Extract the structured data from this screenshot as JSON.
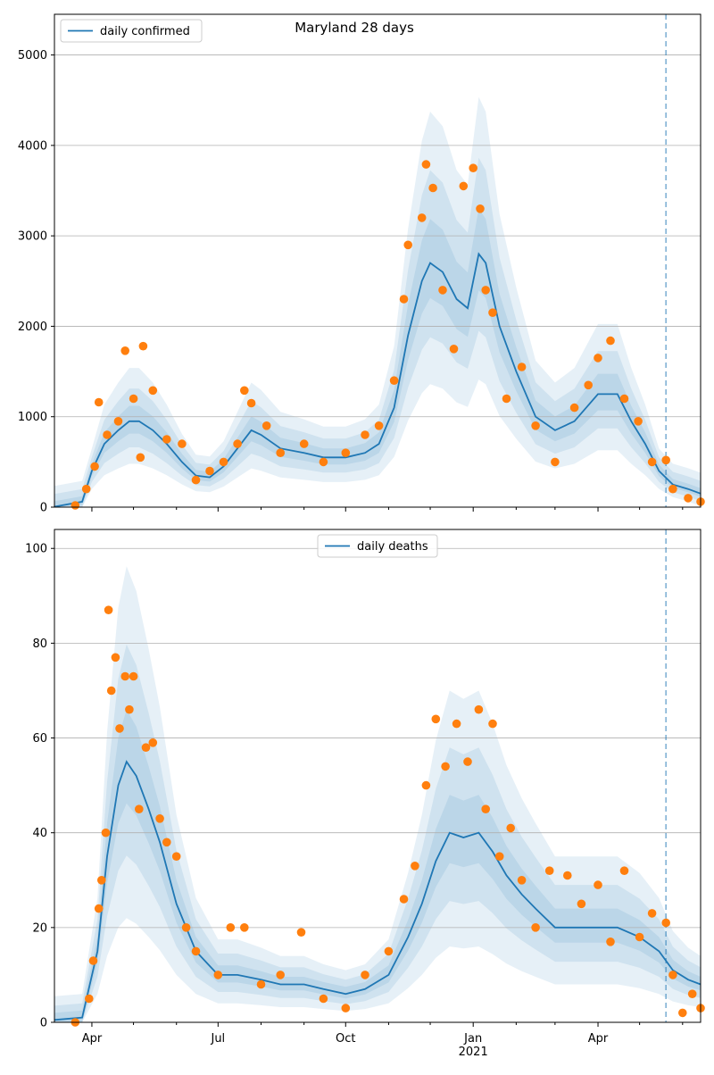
{
  "chart_data": [
    {
      "type": "line",
      "title": "Maryland 28 days",
      "legend": {
        "label": "daily confirmed",
        "placement": "top-left"
      },
      "y_ticks": [
        0,
        1000,
        2000,
        3000,
        4000,
        5000
      ],
      "ylim": [
        0,
        5450
      ],
      "grid": "y",
      "forecast_start": "2021-05-20",
      "colors": {
        "line": "#1f77b4",
        "points": "#ff7f0e",
        "band": "#1f77b4",
        "cutoff": "#1f77b4"
      },
      "series": [
        {
          "x": "2020-03-05",
          "y": 5
        },
        {
          "x": "2020-03-25",
          "y": 60
        },
        {
          "x": "2020-04-01",
          "y": 400
        },
        {
          "x": "2020-04-10",
          "y": 700
        },
        {
          "x": "2020-04-20",
          "y": 850
        },
        {
          "x": "2020-04-28",
          "y": 950
        },
        {
          "x": "2020-05-05",
          "y": 950
        },
        {
          "x": "2020-05-15",
          "y": 850
        },
        {
          "x": "2020-05-25",
          "y": 700
        },
        {
          "x": "2020-06-05",
          "y": 500
        },
        {
          "x": "2020-06-15",
          "y": 350
        },
        {
          "x": "2020-06-25",
          "y": 330
        },
        {
          "x": "2020-07-05",
          "y": 450
        },
        {
          "x": "2020-07-15",
          "y": 650
        },
        {
          "x": "2020-07-25",
          "y": 850
        },
        {
          "x": "2020-08-01",
          "y": 800
        },
        {
          "x": "2020-08-15",
          "y": 650
        },
        {
          "x": "2020-09-01",
          "y": 600
        },
        {
          "x": "2020-09-15",
          "y": 550
        },
        {
          "x": "2020-10-01",
          "y": 550
        },
        {
          "x": "2020-10-15",
          "y": 600
        },
        {
          "x": "2020-10-25",
          "y": 700
        },
        {
          "x": "2020-11-05",
          "y": 1100
        },
        {
          "x": "2020-11-15",
          "y": 1900
        },
        {
          "x": "2020-11-25",
          "y": 2500
        },
        {
          "x": "2020-12-01",
          "y": 2700
        },
        {
          "x": "2020-12-10",
          "y": 2600
        },
        {
          "x": "2020-12-20",
          "y": 2300
        },
        {
          "x": "2020-12-28",
          "y": 2200
        },
        {
          "x": "2021-01-05",
          "y": 2800
        },
        {
          "x": "2021-01-10",
          "y": 2700
        },
        {
          "x": "2021-01-20",
          "y": 2000
        },
        {
          "x": "2021-02-01",
          "y": 1500
        },
        {
          "x": "2021-02-15",
          "y": 1000
        },
        {
          "x": "2021-03-01",
          "y": 850
        },
        {
          "x": "2021-03-15",
          "y": 950
        },
        {
          "x": "2021-04-01",
          "y": 1250
        },
        {
          "x": "2021-04-15",
          "y": 1250
        },
        {
          "x": "2021-04-25",
          "y": 950
        },
        {
          "x": "2021-05-05",
          "y": 700
        },
        {
          "x": "2021-05-15",
          "y": 400
        },
        {
          "x": "2021-05-25",
          "y": 250
        },
        {
          "x": "2021-06-05",
          "y": 200
        },
        {
          "x": "2021-06-14",
          "y": 150
        }
      ],
      "points": [
        {
          "x": "2020-03-20",
          "y": 20
        },
        {
          "x": "2020-03-28",
          "y": 200
        },
        {
          "x": "2020-04-03",
          "y": 450
        },
        {
          "x": "2020-04-06",
          "y": 1160
        },
        {
          "x": "2020-04-12",
          "y": 800
        },
        {
          "x": "2020-04-20",
          "y": 950
        },
        {
          "x": "2020-04-25",
          "y": 1730
        },
        {
          "x": "2020-05-01",
          "y": 1200
        },
        {
          "x": "2020-05-06",
          "y": 550
        },
        {
          "x": "2020-05-08",
          "y": 1780
        },
        {
          "x": "2020-05-15",
          "y": 1290
        },
        {
          "x": "2020-05-25",
          "y": 750
        },
        {
          "x": "2020-06-05",
          "y": 700
        },
        {
          "x": "2020-06-15",
          "y": 300
        },
        {
          "x": "2020-06-25",
          "y": 400
        },
        {
          "x": "2020-07-05",
          "y": 500
        },
        {
          "x": "2020-07-15",
          "y": 700
        },
        {
          "x": "2020-07-20",
          "y": 1290
        },
        {
          "x": "2020-07-25",
          "y": 1150
        },
        {
          "x": "2020-08-05",
          "y": 900
        },
        {
          "x": "2020-08-15",
          "y": 600
        },
        {
          "x": "2020-09-01",
          "y": 700
        },
        {
          "x": "2020-09-15",
          "y": 500
        },
        {
          "x": "2020-10-01",
          "y": 600
        },
        {
          "x": "2020-10-15",
          "y": 800
        },
        {
          "x": "2020-10-25",
          "y": 900
        },
        {
          "x": "2020-11-05",
          "y": 1400
        },
        {
          "x": "2020-11-12",
          "y": 2300
        },
        {
          "x": "2020-11-15",
          "y": 2900
        },
        {
          "x": "2020-11-25",
          "y": 3200
        },
        {
          "x": "2020-11-28",
          "y": 3790
        },
        {
          "x": "2020-12-03",
          "y": 3530
        },
        {
          "x": "2020-12-10",
          "y": 2400
        },
        {
          "x": "2020-12-18",
          "y": 1750
        },
        {
          "x": "2020-12-25",
          "y": 3550
        },
        {
          "x": "2021-01-01",
          "y": 3750
        },
        {
          "x": "2021-01-06",
          "y": 3300
        },
        {
          "x": "2021-01-10",
          "y": 2400
        },
        {
          "x": "2021-01-15",
          "y": 2150
        },
        {
          "x": "2021-01-25",
          "y": 1200
        },
        {
          "x": "2021-02-05",
          "y": 1550
        },
        {
          "x": "2021-02-15",
          "y": 900
        },
        {
          "x": "2021-03-01",
          "y": 500
        },
        {
          "x": "2021-03-15",
          "y": 1100
        },
        {
          "x": "2021-03-25",
          "y": 1350
        },
        {
          "x": "2021-04-01",
          "y": 1650
        },
        {
          "x": "2021-04-10",
          "y": 1840
        },
        {
          "x": "2021-04-20",
          "y": 1200
        },
        {
          "x": "2021-04-30",
          "y": 950
        },
        {
          "x": "2021-05-10",
          "y": 500
        },
        {
          "x": "2021-05-20",
          "y": 520
        },
        {
          "x": "2021-05-25",
          "y": 200
        },
        {
          "x": "2021-06-05",
          "y": 100
        },
        {
          "x": "2021-06-14",
          "y": 60
        }
      ]
    },
    {
      "type": "line",
      "title": "",
      "legend": {
        "label": "daily deaths",
        "placement": "top-center"
      },
      "y_ticks": [
        0,
        20,
        40,
        60,
        80,
        100
      ],
      "ylim": [
        0,
        104
      ],
      "grid": "y",
      "forecast_start": "2021-05-20",
      "x_ticks": [
        {
          "x": "2020-04-01",
          "label": "Apr"
        },
        {
          "x": "2020-07-01",
          "label": "Jul"
        },
        {
          "x": "2020-10-01",
          "label": "Oct"
        },
        {
          "x": "2021-01-01",
          "label": "Jan",
          "sub": "2021"
        },
        {
          "x": "2021-04-01",
          "label": "Apr"
        }
      ],
      "colors": {
        "line": "#1f77b4",
        "points": "#ff7f0e",
        "band": "#1f77b4",
        "cutoff": "#1f77b4"
      },
      "series": [
        {
          "x": "2020-03-05",
          "y": 0.5
        },
        {
          "x": "2020-03-25",
          "y": 1
        },
        {
          "x": "2020-04-05",
          "y": 15
        },
        {
          "x": "2020-04-12",
          "y": 35
        },
        {
          "x": "2020-04-20",
          "y": 50
        },
        {
          "x": "2020-04-26",
          "y": 55
        },
        {
          "x": "2020-05-03",
          "y": 52
        },
        {
          "x": "2020-05-12",
          "y": 45
        },
        {
          "x": "2020-05-20",
          "y": 38
        },
        {
          "x": "2020-06-01",
          "y": 25
        },
        {
          "x": "2020-06-15",
          "y": 15
        },
        {
          "x": "2020-07-01",
          "y": 10
        },
        {
          "x": "2020-07-15",
          "y": 10
        },
        {
          "x": "2020-08-01",
          "y": 9
        },
        {
          "x": "2020-08-15",
          "y": 8
        },
        {
          "x": "2020-09-01",
          "y": 8
        },
        {
          "x": "2020-09-15",
          "y": 7
        },
        {
          "x": "2020-10-01",
          "y": 6
        },
        {
          "x": "2020-10-15",
          "y": 7
        },
        {
          "x": "2020-11-01",
          "y": 10
        },
        {
          "x": "2020-11-15",
          "y": 18
        },
        {
          "x": "2020-11-25",
          "y": 25
        },
        {
          "x": "2020-12-05",
          "y": 34
        },
        {
          "x": "2020-12-15",
          "y": 40
        },
        {
          "x": "2020-12-25",
          "y": 39
        },
        {
          "x": "2021-01-05",
          "y": 40
        },
        {
          "x": "2021-01-15",
          "y": 36
        },
        {
          "x": "2021-01-25",
          "y": 31
        },
        {
          "x": "2021-02-05",
          "y": 27
        },
        {
          "x": "2021-02-15",
          "y": 24
        },
        {
          "x": "2021-03-01",
          "y": 20
        },
        {
          "x": "2021-03-15",
          "y": 20
        },
        {
          "x": "2021-04-01",
          "y": 20
        },
        {
          "x": "2021-04-15",
          "y": 20
        },
        {
          "x": "2021-05-01",
          "y": 18
        },
        {
          "x": "2021-05-15",
          "y": 15
        },
        {
          "x": "2021-05-25",
          "y": 11
        },
        {
          "x": "2021-06-05",
          "y": 9
        },
        {
          "x": "2021-06-14",
          "y": 8
        }
      ],
      "points": [
        {
          "x": "2020-03-20",
          "y": 0
        },
        {
          "x": "2020-03-30",
          "y": 5
        },
        {
          "x": "2020-04-02",
          "y": 13
        },
        {
          "x": "2020-04-06",
          "y": 24
        },
        {
          "x": "2020-04-08",
          "y": 30
        },
        {
          "x": "2020-04-11",
          "y": 40
        },
        {
          "x": "2020-04-13",
          "y": 87
        },
        {
          "x": "2020-04-15",
          "y": 70
        },
        {
          "x": "2020-04-18",
          "y": 77
        },
        {
          "x": "2020-04-21",
          "y": 62
        },
        {
          "x": "2020-04-25",
          "y": 73
        },
        {
          "x": "2020-04-28",
          "y": 66
        },
        {
          "x": "2020-05-01",
          "y": 73
        },
        {
          "x": "2020-05-05",
          "y": 45
        },
        {
          "x": "2020-05-10",
          "y": 58
        },
        {
          "x": "2020-05-15",
          "y": 59
        },
        {
          "x": "2020-05-20",
          "y": 43
        },
        {
          "x": "2020-05-25",
          "y": 38
        },
        {
          "x": "2020-06-01",
          "y": 35
        },
        {
          "x": "2020-06-08",
          "y": 20
        },
        {
          "x": "2020-06-15",
          "y": 15
        },
        {
          "x": "2020-07-01",
          "y": 10
        },
        {
          "x": "2020-07-10",
          "y": 20
        },
        {
          "x": "2020-07-20",
          "y": 20
        },
        {
          "x": "2020-08-01",
          "y": 8
        },
        {
          "x": "2020-08-15",
          "y": 10
        },
        {
          "x": "2020-08-30",
          "y": 19
        },
        {
          "x": "2020-09-15",
          "y": 5
        },
        {
          "x": "2020-10-01",
          "y": 3
        },
        {
          "x": "2020-10-15",
          "y": 10
        },
        {
          "x": "2020-11-01",
          "y": 15
        },
        {
          "x": "2020-11-12",
          "y": 26
        },
        {
          "x": "2020-11-20",
          "y": 33
        },
        {
          "x": "2020-11-28",
          "y": 50
        },
        {
          "x": "2020-12-05",
          "y": 64
        },
        {
          "x": "2020-12-12",
          "y": 54
        },
        {
          "x": "2020-12-20",
          "y": 63
        },
        {
          "x": "2020-12-28",
          "y": 55
        },
        {
          "x": "2021-01-05",
          "y": 66
        },
        {
          "x": "2021-01-10",
          "y": 45
        },
        {
          "x": "2021-01-15",
          "y": 63
        },
        {
          "x": "2021-01-20",
          "y": 35
        },
        {
          "x": "2021-01-28",
          "y": 41
        },
        {
          "x": "2021-02-05",
          "y": 30
        },
        {
          "x": "2021-02-15",
          "y": 20
        },
        {
          "x": "2021-02-25",
          "y": 32
        },
        {
          "x": "2021-03-10",
          "y": 31
        },
        {
          "x": "2021-03-20",
          "y": 25
        },
        {
          "x": "2021-04-01",
          "y": 29
        },
        {
          "x": "2021-04-10",
          "y": 17
        },
        {
          "x": "2021-04-20",
          "y": 32
        },
        {
          "x": "2021-05-01",
          "y": 18
        },
        {
          "x": "2021-05-10",
          "y": 23
        },
        {
          "x": "2021-05-20",
          "y": 21
        },
        {
          "x": "2021-05-25",
          "y": 10
        },
        {
          "x": "2021-06-01",
          "y": 2
        },
        {
          "x": "2021-06-08",
          "y": 6
        },
        {
          "x": "2021-06-14",
          "y": 3
        }
      ]
    }
  ]
}
